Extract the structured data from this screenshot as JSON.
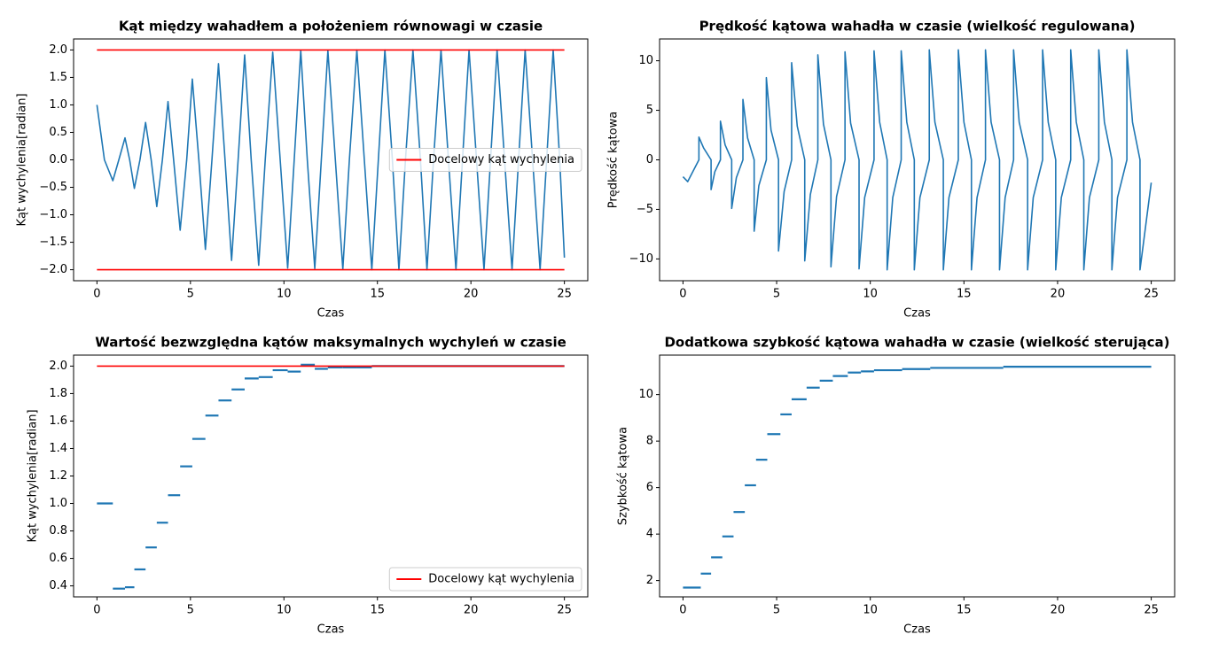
{
  "chart_data": [
    {
      "type": "line",
      "title": "Kąt między wahadłem a położeniem równowagi w czasie",
      "xlabel": "Czas",
      "ylabel": "Kąt wychylenia[radian]",
      "xlim": [
        -1.25,
        26.25
      ],
      "xticks": [
        0,
        5,
        10,
        15,
        20,
        25
      ],
      "ylim": [
        -2.2,
        2.2
      ],
      "yticks": [
        {
          "value": -2.0,
          "label": "−2.0"
        },
        {
          "value": -1.5,
          "label": "−1.5"
        },
        {
          "value": -1.0,
          "label": "−1.0"
        },
        {
          "value": -0.5,
          "label": "−0.5"
        },
        {
          "value": 0.0,
          "label": "0.0"
        },
        0.5,
        {
          "value": 1.0,
          "label": "1.0"
        },
        1.5,
        {
          "value": 2.0,
          "label": "2.0"
        }
      ],
      "legend": "center right",
      "series": [
        {
          "color": "#1f77b4",
          "x": [
            0,
            0.4,
            0.85,
            1.17,
            1.5,
            1.75,
            2.0,
            2.3,
            2.6,
            2.9,
            3.2,
            3.5,
            3.8,
            4.1,
            4.45,
            4.8,
            5.1,
            5.45,
            5.8,
            6.15,
            6.5,
            6.85,
            7.2,
            7.55,
            7.9,
            8.25,
            8.65,
            9.0,
            9.4,
            9.8,
            10.2,
            10.55,
            10.9,
            11.25,
            11.65,
            12.0,
            12.35,
            12.75,
            13.15,
            13.5,
            13.9,
            14.3,
            14.7,
            15.05,
            15.4,
            15.8,
            16.15,
            16.5,
            16.9,
            17.3,
            17.65,
            18.0,
            18.4,
            18.8,
            19.2,
            19.55,
            19.9,
            20.3,
            20.7,
            21.05,
            21.4,
            21.8,
            22.2,
            22.55,
            22.9,
            23.3,
            23.7,
            24.05,
            24.4,
            24.75,
            25
          ],
          "values": [
            1.0,
            0,
            -0.38,
            0,
            0.4,
            0,
            -0.52,
            0,
            0.68,
            0,
            -0.85,
            0,
            1.06,
            0,
            -1.28,
            0,
            1.47,
            0,
            -1.63,
            0,
            1.75,
            0,
            -1.83,
            0,
            1.91,
            0,
            -1.92,
            0,
            1.96,
            0,
            -1.97,
            0,
            1.99,
            0,
            -1.98,
            0,
            1.99,
            0,
            -1.99,
            0,
            2.0,
            0,
            -2.0,
            0,
            2.0,
            0,
            -2.0,
            0,
            2.0,
            0,
            -2.0,
            0,
            2.0,
            0,
            -2.0,
            0,
            2.0,
            0,
            -2.0,
            0,
            2.0,
            0,
            -2.0,
            0,
            2.0,
            0,
            -2.0,
            0,
            2.0,
            0,
            -1.78
          ]
        },
        {
          "name": "Docelowy kąt wychylenia",
          "color": "#ff0000",
          "x": [
            0,
            25
          ],
          "values": [
            2.0,
            2.0
          ]
        },
        {
          "color": "#ff0000",
          "x": [
            0,
            25
          ],
          "values": [
            -2.0,
            -2.0
          ]
        }
      ]
    },
    {
      "type": "line",
      "title": "Prędkość kątowa wahadła w czasie (wielkość regulowana)",
      "xlabel": "Czas",
      "ylabel": "Prędkość kątowa",
      "xlim": [
        -1.25,
        26.25
      ],
      "xticks": [
        0,
        5,
        10,
        15,
        20,
        25
      ],
      "ylim": [
        -12.2,
        12.2
      ],
      "yticks": [
        {
          "value": -10,
          "label": "−10"
        },
        {
          "value": -5,
          "label": "−5"
        },
        0,
        5,
        10
      ],
      "series": [
        {
          "color": "#1f77b4",
          "x": [
            0,
            0.25,
            0.85,
            0.85,
            1.1,
            1.5,
            1.5,
            1.7,
            2.0,
            2.0,
            2.25,
            2.6,
            2.6,
            2.85,
            3.2,
            3.2,
            3.45,
            3.8,
            3.8,
            4.05,
            4.45,
            4.45,
            4.7,
            5.1,
            5.1,
            5.4,
            5.8,
            5.8,
            6.1,
            6.5,
            6.5,
            6.8,
            7.2,
            7.2,
            7.5,
            7.9,
            7.9,
            8.2,
            8.65,
            8.65,
            8.95,
            9.4,
            9.4,
            9.7,
            10.2,
            10.2,
            10.5,
            10.9,
            10.9,
            11.2,
            11.65,
            11.65,
            11.95,
            12.35,
            12.35,
            12.65,
            13.15,
            13.15,
            13.45,
            13.9,
            13.9,
            14.2,
            14.7,
            14.7,
            15.0,
            15.4,
            15.4,
            15.7,
            16.15,
            16.15,
            16.45,
            16.9,
            16.9,
            17.2,
            17.65,
            17.65,
            17.95,
            18.4,
            18.4,
            18.7,
            19.2,
            19.2,
            19.5,
            19.9,
            19.9,
            20.2,
            20.7,
            20.7,
            21.0,
            21.4,
            21.4,
            21.7,
            22.2,
            22.2,
            22.5,
            22.9,
            22.9,
            23.2,
            23.7,
            23.7,
            24.0,
            24.4,
            24.4,
            25
          ],
          "values": [
            -1.7,
            -2.2,
            0,
            2.3,
            1.2,
            0,
            -3.0,
            -1.2,
            0,
            3.9,
            1.5,
            0,
            -4.9,
            -1.8,
            0,
            6.1,
            2.2,
            0,
            -7.2,
            -2.6,
            0,
            8.3,
            3.0,
            0,
            -9.2,
            -3.2,
            0,
            9.8,
            3.4,
            0,
            -10.2,
            -3.5,
            0,
            10.6,
            3.6,
            0,
            -10.8,
            -3.7,
            0,
            10.9,
            3.7,
            0,
            -11.0,
            -3.8,
            0,
            11.0,
            3.8,
            0,
            -11.1,
            -3.8,
            0,
            11.0,
            3.8,
            0,
            -11.1,
            -3.8,
            0,
            11.1,
            3.8,
            0,
            -11.1,
            -3.8,
            0,
            11.1,
            3.8,
            0,
            -11.1,
            -3.8,
            0,
            11.1,
            3.8,
            0,
            -11.1,
            -3.8,
            0,
            11.1,
            3.8,
            0,
            -11.1,
            -3.8,
            0,
            11.1,
            3.8,
            0,
            -11.1,
            -3.8,
            0,
            11.1,
            3.8,
            0,
            -11.1,
            -3.8,
            0,
            11.1,
            3.8,
            0,
            -11.1,
            -3.8,
            0,
            11.1,
            3.8,
            0,
            -11.1,
            -2.3
          ]
        }
      ]
    },
    {
      "type": "step",
      "title": "Wartość bezwzględna kątów maksymalnych wychyleń w czasie",
      "xlabel": "Czas",
      "ylabel": "Kąt wychylenia[radian]",
      "xlim": [
        -1.25,
        26.25
      ],
      "xticks": [
        0,
        5,
        10,
        15,
        20,
        25
      ],
      "ylim": [
        0.32,
        2.08
      ],
      "yticks": [
        0.4,
        0.6,
        0.8,
        {
          "value": 1.0,
          "label": "1.0"
        },
        1.2,
        1.4,
        1.6,
        1.8,
        {
          "value": 2.0,
          "label": "2.0"
        }
      ],
      "legend": "lower right",
      "series": [
        {
          "color": "#1f77b4",
          "bins": [
            0,
            0.85,
            1.5,
            2.0,
            2.6,
            3.2,
            3.8,
            4.45,
            5.1,
            5.8,
            6.5,
            7.2,
            7.9,
            8.65,
            9.4,
            10.2,
            10.9,
            11.65,
            12.35,
            13.15,
            13.9,
            14.7,
            25
          ],
          "values": [
            1.0,
            0.38,
            0.39,
            0.52,
            0.68,
            0.86,
            1.06,
            1.27,
            1.47,
            1.64,
            1.75,
            1.83,
            1.91,
            1.92,
            1.97,
            1.96,
            2.01,
            1.98,
            1.99,
            1.99,
            1.99,
            2.0
          ]
        },
        {
          "name": "Docelowy kąt wychylenia",
          "color": "#ff0000",
          "x": [
            0,
            25
          ],
          "values": [
            2.0,
            2.0
          ]
        }
      ]
    },
    {
      "type": "step",
      "title": "Dodatkowa szybkość kątowa wahadła w czasie (wielkość sterująca)",
      "xlabel": "Czas",
      "ylabel": "Szybkość kątowa",
      "xlim": [
        -1.25,
        26.25
      ],
      "xticks": [
        0,
        5,
        10,
        15,
        20,
        25
      ],
      "ylim": [
        1.3,
        11.7
      ],
      "yticks": [
        2,
        4,
        6,
        8,
        10
      ],
      "series": [
        {
          "color": "#1f77b4",
          "bins": [
            0,
            0.95,
            1.5,
            2.1,
            2.7,
            3.3,
            3.9,
            4.5,
            5.2,
            5.8,
            6.6,
            7.3,
            8.0,
            8.8,
            9.5,
            10.2,
            11.7,
            13.2,
            17.1,
            25
          ],
          "values": [
            1.7,
            2.3,
            3.0,
            3.9,
            4.95,
            6.1,
            7.2,
            8.3,
            9.15,
            9.8,
            10.3,
            10.6,
            10.8,
            10.95,
            11.0,
            11.05,
            11.1,
            11.15,
            11.2
          ]
        }
      ]
    }
  ]
}
